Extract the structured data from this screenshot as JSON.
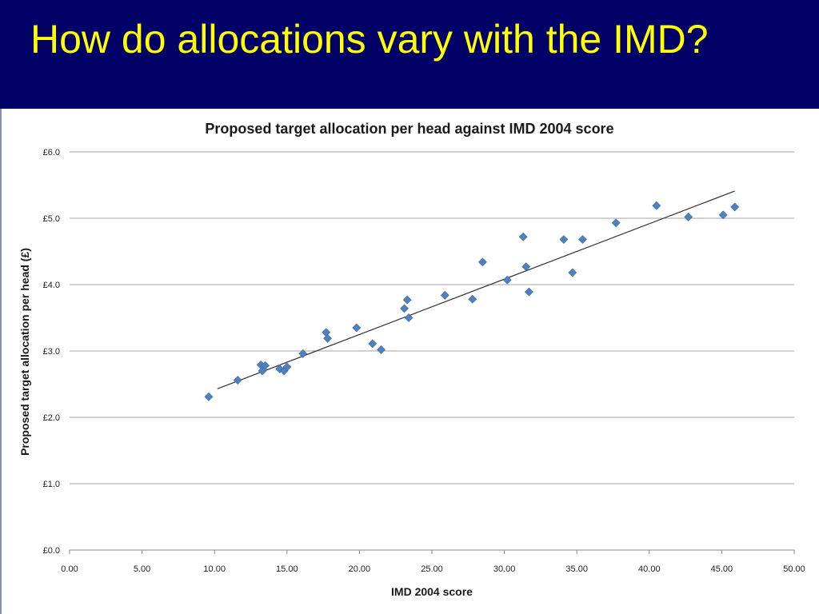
{
  "slide": {
    "title": "How do allocations vary with the IMD?"
  },
  "colors": {
    "background": "#000066",
    "title_text": "#ffff00",
    "marker": "#4f81bd",
    "trendline": "#333333",
    "gridline": "#a6a6a6"
  },
  "chart_data": {
    "type": "scatter",
    "title": "Proposed target allocation per head against IMD 2004 score",
    "xlabel": "IMD 2004 score",
    "ylabel": "Proposed target allocation per head (£)",
    "xlim": [
      0,
      50
    ],
    "ylim": [
      0,
      6
    ],
    "x_ticks": [
      "0.00",
      "5.00",
      "10.00",
      "15.00",
      "20.00",
      "25.00",
      "30.00",
      "35.00",
      "40.00",
      "45.00",
      "50.00"
    ],
    "y_ticks": [
      "£0.0",
      "£1.0",
      "£2.0",
      "£3.0",
      "£4.0",
      "£5.0",
      "£6.0"
    ],
    "grid": "horizontal",
    "marker": "diamond",
    "trendline": {
      "type": "linear",
      "x": [
        10.2,
        45.9
      ],
      "y": [
        2.43,
        5.41
      ]
    },
    "points": [
      {
        "x": 9.6,
        "y": 2.31
      },
      {
        "x": 11.6,
        "y": 2.56
      },
      {
        "x": 13.2,
        "y": 2.79
      },
      {
        "x": 13.3,
        "y": 2.7
      },
      {
        "x": 13.5,
        "y": 2.78
      },
      {
        "x": 14.5,
        "y": 2.73
      },
      {
        "x": 14.8,
        "y": 2.7
      },
      {
        "x": 15.0,
        "y": 2.76
      },
      {
        "x": 16.1,
        "y": 2.96
      },
      {
        "x": 17.7,
        "y": 3.28
      },
      {
        "x": 17.8,
        "y": 3.19
      },
      {
        "x": 19.8,
        "y": 3.35
      },
      {
        "x": 20.9,
        "y": 3.11
      },
      {
        "x": 21.5,
        "y": 3.02
      },
      {
        "x": 23.1,
        "y": 3.64
      },
      {
        "x": 23.3,
        "y": 3.77
      },
      {
        "x": 23.4,
        "y": 3.5
      },
      {
        "x": 25.9,
        "y": 3.84
      },
      {
        "x": 27.8,
        "y": 3.78
      },
      {
        "x": 28.5,
        "y": 4.34
      },
      {
        "x": 30.2,
        "y": 4.07
      },
      {
        "x": 31.3,
        "y": 4.72
      },
      {
        "x": 31.5,
        "y": 4.27
      },
      {
        "x": 31.7,
        "y": 3.89
      },
      {
        "x": 34.1,
        "y": 4.68
      },
      {
        "x": 34.7,
        "y": 4.18
      },
      {
        "x": 35.4,
        "y": 4.68
      },
      {
        "x": 37.7,
        "y": 4.93
      },
      {
        "x": 40.5,
        "y": 5.19
      },
      {
        "x": 42.7,
        "y": 5.02
      },
      {
        "x": 45.1,
        "y": 5.05
      },
      {
        "x": 45.9,
        "y": 5.17
      }
    ]
  }
}
